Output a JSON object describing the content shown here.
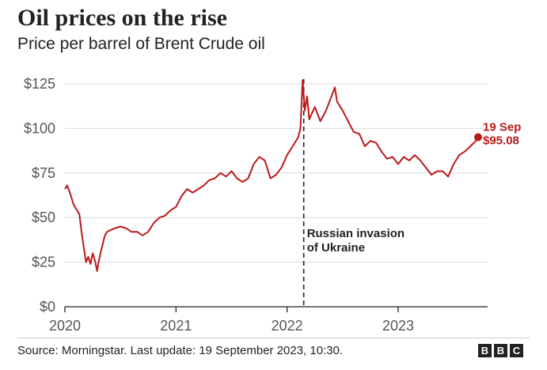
{
  "header": {
    "title": "Oil prices on the rise",
    "subtitle": "Price per barrel of Brent Crude oil"
  },
  "footer": {
    "source": "Source: Morningstar. Last update: 19 September 2023, 10:30.",
    "logo_letters": [
      "B",
      "B",
      "C"
    ]
  },
  "colors": {
    "line": "#bb1919",
    "grid": "#dddddd",
    "axis": "#222222",
    "text": "#222222",
    "tick": "#555555"
  },
  "chart_data": {
    "type": "line",
    "title": "Oil prices on the rise",
    "subtitle": "Price per barrel of Brent Crude oil",
    "xlabel": "",
    "ylabel": "",
    "xlim": [
      2020.0,
      2023.72
    ],
    "ylim": [
      0,
      125
    ],
    "y_ticks": [
      0,
      25,
      50,
      75,
      100,
      125
    ],
    "y_tick_labels": [
      "$0",
      "$25",
      "$50",
      "$75",
      "$100",
      "$125"
    ],
    "x_ticks": [
      2020,
      2021,
      2022,
      2023
    ],
    "x_tick_labels": [
      "2020",
      "2021",
      "2022",
      "2023"
    ],
    "grid": true,
    "series": [
      {
        "color": "#bb1919",
        "x": [
          2020.0,
          2020.02,
          2020.05,
          2020.08,
          2020.1,
          2020.13,
          2020.15,
          2020.17,
          2020.19,
          2020.21,
          2020.23,
          2020.25,
          2020.27,
          2020.29,
          2020.3,
          2020.32,
          2020.34,
          2020.36,
          2020.38,
          2020.41,
          2020.45,
          2020.5,
          2020.55,
          2020.6,
          2020.65,
          2020.7,
          2020.75,
          2020.8,
          2020.85,
          2020.9,
          2020.95,
          2021.0,
          2021.05,
          2021.1,
          2021.15,
          2021.2,
          2021.25,
          2021.3,
          2021.35,
          2021.4,
          2021.45,
          2021.5,
          2021.55,
          2021.6,
          2021.65,
          2021.7,
          2021.75,
          2021.8,
          2021.85,
          2021.9,
          2021.95,
          2022.0,
          2022.05,
          2022.1,
          2022.12,
          2022.14,
          2022.16,
          2022.18,
          2022.2,
          2022.22,
          2022.25,
          2022.3,
          2022.35,
          2022.4,
          2022.43,
          2022.45,
          2022.5,
          2022.55,
          2022.6,
          2022.65,
          2022.7,
          2022.75,
          2022.8,
          2022.85,
          2022.9,
          2022.95,
          2023.0,
          2023.05,
          2023.1,
          2023.15,
          2023.2,
          2023.25,
          2023.3,
          2023.35,
          2023.4,
          2023.45,
          2023.5,
          2023.55,
          2023.6,
          2023.65,
          2023.7,
          2023.72
        ],
        "y": [
          66,
          68,
          63,
          57,
          55,
          52,
          42,
          33,
          25,
          28,
          24,
          30,
          26,
          20,
          24,
          30,
          35,
          40,
          42,
          43,
          44,
          45,
          44,
          42,
          42,
          40,
          42,
          47,
          50,
          51,
          54,
          56,
          62,
          66,
          64,
          66,
          68,
          71,
          72,
          75,
          73,
          76,
          72,
          70,
          72,
          80,
          84,
          82,
          72,
          74,
          78,
          85,
          90,
          95,
          100,
          127,
          110,
          118,
          105,
          108,
          112,
          104,
          110,
          118,
          123,
          115,
          110,
          104,
          98,
          97,
          90,
          93,
          92,
          87,
          83,
          84,
          80,
          84,
          82,
          85,
          82,
          78,
          74,
          76,
          76,
          73,
          80,
          85,
          87,
          90,
          93,
          95.08
        ]
      }
    ],
    "end_point": {
      "x": 2023.72,
      "y": 95.08,
      "label_line1": "19 Sep",
      "label_line2": "$95.08"
    },
    "annotations": [
      {
        "type": "vline",
        "x": 2022.15,
        "text_line1": "Russian invasion",
        "text_line2": "of Ukraine"
      }
    ]
  }
}
